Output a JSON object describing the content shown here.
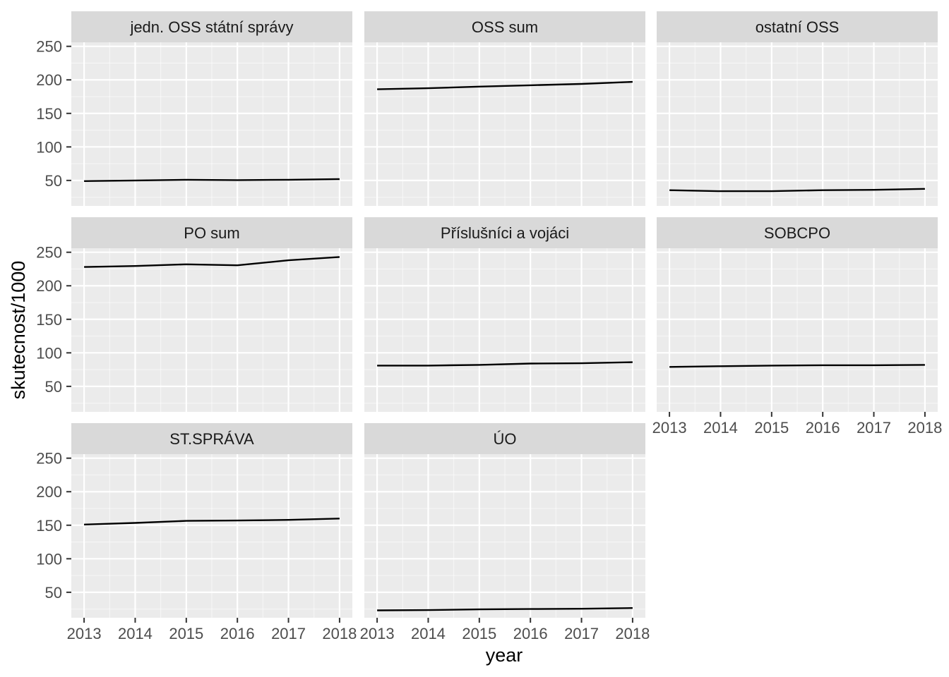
{
  "chart_data": {
    "type": "line",
    "facet_layout": "3 columns x 3 rows, shared axes",
    "xlabel": "year",
    "ylabel": "skutecnost/1000",
    "x": [
      2013,
      2014,
      2015,
      2016,
      2017,
      2018
    ],
    "x_tick_labels": [
      "2013",
      "2014",
      "2015",
      "2016",
      "2017",
      "2018"
    ],
    "y_ticks": [
      50,
      100,
      150,
      200,
      250
    ],
    "y_tick_labels": [
      "50",
      "100",
      "150",
      "200",
      "250"
    ],
    "ylim": [
      12,
      256
    ],
    "grid": true,
    "colors": {
      "panel_background": "#ebebeb",
      "strip_background": "#d9d9d9",
      "grid_major": "#ffffff",
      "line": "#000000"
    },
    "panels": [
      {
        "title": "jedn. OSS státní správy",
        "values": [
          49,
          50,
          51,
          50.5,
          51,
          52
        ]
      },
      {
        "title": "OSS sum",
        "values": [
          186,
          187.5,
          190,
          192,
          194,
          197
        ]
      },
      {
        "title": "ostatní OSS",
        "values": [
          35.5,
          34,
          34,
          35.5,
          36,
          37.5
        ]
      },
      {
        "title": "PO sum",
        "values": [
          228,
          229.5,
          232,
          230.5,
          238,
          243
        ]
      },
      {
        "title": "Příslušníci a vojáci",
        "values": [
          81,
          81,
          82,
          84,
          84.5,
          86
        ]
      },
      {
        "title": "SOBCPO",
        "values": [
          79,
          80,
          81,
          81.5,
          81.5,
          82
        ]
      },
      {
        "title": "ST.SPRÁVA",
        "values": [
          151,
          153.5,
          156.5,
          157,
          158,
          160
        ]
      },
      {
        "title": "ÚO",
        "values": [
          23,
          23.5,
          24.5,
          25,
          25.5,
          26.5
        ]
      }
    ]
  }
}
